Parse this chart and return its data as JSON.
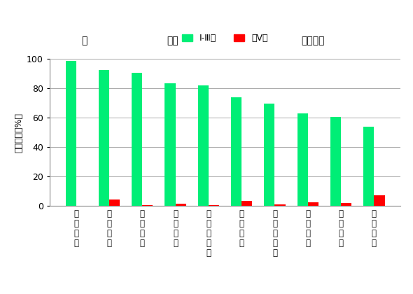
{
  "categories": [
    "西北诸河",
    "西南诸河",
    "长江流域",
    "珠江流域",
    "浙闽片河流",
    "黄河流域",
    "松花江流域",
    "淮河流域",
    "辽河流域",
    "海河流域"
  ],
  "green_values": [
    98.5,
    92.3,
    90.3,
    83.3,
    81.8,
    73.8,
    69.4,
    63.0,
    60.3,
    54.0
  ],
  "red_values": [
    0,
    4.5,
    0.7,
    1.2,
    0.7,
    3.4,
    0.8,
    2.2,
    1.9,
    7.3
  ],
  "green_color": "#00EE76",
  "red_color": "#FF0000",
  "ylabel": "断面比例（%）",
  "ylim": [
    0,
    100
  ],
  "yticks": [
    0,
    20,
    40,
    60,
    80,
    100
  ],
  "legend_green": "I-Ⅲ类",
  "legend_red": "劣V类",
  "quality_label_you": "优",
  "quality_label_good": "良好",
  "quality_label_light": "轻度污染",
  "background_color": "#FFFFFF",
  "bar_width": 0.32,
  "grid_color": "#AAAAAA"
}
